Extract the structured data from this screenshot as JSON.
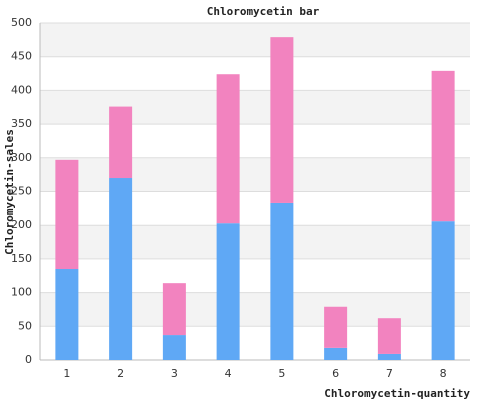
{
  "chart_data": {
    "type": "stacked_bar",
    "title": "Chloromycetin bar",
    "x_label": "Chloromycetin-quantity",
    "y_label": "Chloromycetin-sales",
    "categories": [
      "1",
      "2",
      "3",
      "4",
      "5",
      "6",
      "7",
      "8"
    ],
    "series": [
      {
        "color": "#5fa8f5",
        "values": [
          135,
          270,
          37,
          203,
          233,
          18,
          9,
          206
        ]
      },
      {
        "color": "#f283bf",
        "values": [
          162,
          106,
          77,
          221,
          246,
          61,
          53,
          223
        ]
      }
    ],
    "ylim": [
      0,
      500
    ],
    "yticks": [
      0,
      50,
      100,
      150,
      200,
      250,
      300,
      350,
      400,
      450,
      500
    ],
    "grid": true
  }
}
